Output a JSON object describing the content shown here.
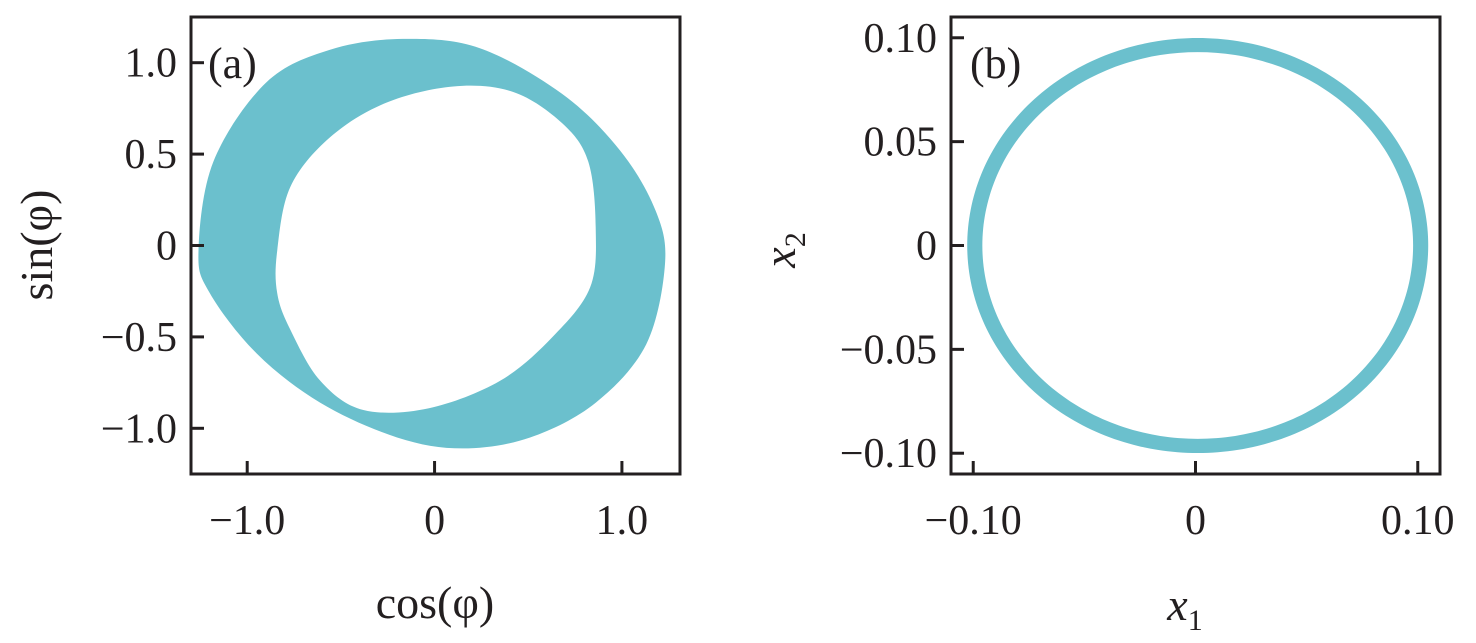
{
  "chart_data": [
    {
      "type": "area",
      "panel_label": "(a)",
      "xlabel": "cos(φ)",
      "ylabel": "sin(φ)",
      "xlim": [
        -1.3,
        1.31
      ],
      "ylim": [
        -1.25,
        1.25
      ],
      "xticks": [
        -1.0,
        0,
        1.0
      ],
      "xtick_labels": [
        "−1.0",
        "0",
        "1.0"
      ],
      "yticks": [
        1.0,
        0.5,
        0,
        -0.5,
        -1.0
      ],
      "ytick_labels": [
        "1.0",
        "0.5",
        "0",
        "−0.5",
        "−1.0"
      ],
      "grid": false,
      "color": "#6bc0cd",
      "outer_boundary": [
        [
          -1.26,
          -0.03
        ],
        [
          -1.18,
          0.46
        ],
        [
          -0.9,
          0.89
        ],
        [
          -0.56,
          1.07
        ],
        [
          -0.17,
          1.13
        ],
        [
          0.24,
          1.08
        ],
        [
          0.68,
          0.83
        ],
        [
          0.99,
          0.52
        ],
        [
          1.18,
          0.19
        ],
        [
          1.23,
          -0.1
        ],
        [
          1.13,
          -0.54
        ],
        [
          0.86,
          -0.86
        ],
        [
          0.51,
          -1.05
        ],
        [
          0.15,
          -1.11
        ],
        [
          -0.2,
          -1.05
        ],
        [
          -0.61,
          -0.86
        ],
        [
          -0.95,
          -0.59
        ],
        [
          -1.2,
          -0.26
        ]
      ],
      "inner_boundary": [
        [
          -0.84,
          -0.03
        ],
        [
          -0.77,
          0.32
        ],
        [
          -0.56,
          0.59
        ],
        [
          -0.26,
          0.78
        ],
        [
          0.1,
          0.87
        ],
        [
          0.42,
          0.84
        ],
        [
          0.68,
          0.67
        ],
        [
          0.82,
          0.46
        ],
        [
          0.86,
          0.1
        ],
        [
          0.83,
          -0.23
        ],
        [
          0.63,
          -0.5
        ],
        [
          0.35,
          -0.74
        ],
        [
          -0.03,
          -0.89
        ],
        [
          -0.38,
          -0.9
        ],
        [
          -0.61,
          -0.74
        ],
        [
          -0.77,
          -0.46
        ],
        [
          -0.84,
          -0.26
        ]
      ]
    },
    {
      "type": "line",
      "panel_label": "(b)",
      "xlabel": "x",
      "xlabel_sub": "1",
      "ylabel": "x",
      "ylabel_sub": "2",
      "xlim": [
        -0.11,
        0.11
      ],
      "ylim": [
        -0.11,
        0.11
      ],
      "xticks": [
        -0.1,
        0,
        0.1
      ],
      "xtick_labels": [
        "−0.10",
        "0",
        "0.10"
      ],
      "yticks": [
        0.1,
        0.05,
        0,
        -0.05,
        -0.1
      ],
      "ytick_labels": [
        "0.10",
        "0.05",
        "0",
        "−0.05",
        "−0.10"
      ],
      "grid": false,
      "color": "#6bc0cd",
      "ring": {
        "center": [
          0.001,
          0.0
        ],
        "radius_x": 0.1003,
        "radius_y": 0.0965,
        "band_width": 0.0068
      }
    }
  ]
}
